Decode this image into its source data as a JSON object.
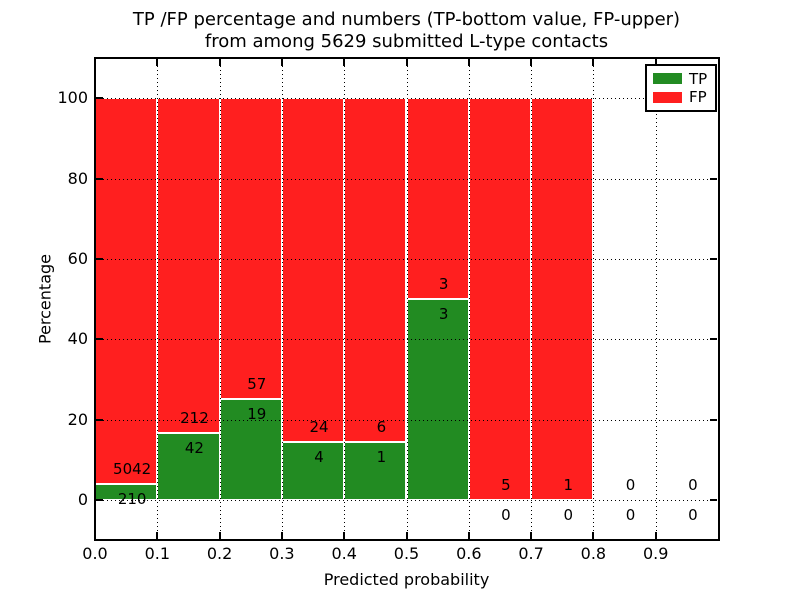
{
  "title": {
    "line1": "TP /FP percentage and numbers (TP-bottom value, FP-upper)",
    "line2": "from among 5629 submitted L-type contacts"
  },
  "chart_data": {
    "type": "bar",
    "stacked": true,
    "normalized": "each bin scaled to 100% of bin total",
    "title": "TP /FP percentage and numbers (TP-bottom value, FP-upper)\nfrom among 5629 submitted L-type contacts",
    "total_contacts": 5629,
    "xlabel": "Predicted probability",
    "ylabel": "Percentage",
    "xlim": [
      0.0,
      1.0
    ],
    "ylim": [
      -10,
      110
    ],
    "x_tick_labels": [
      "0.0",
      "0.1",
      "0.2",
      "0.3",
      "0.4",
      "0.5",
      "0.6",
      "0.7",
      "0.8",
      "0.9"
    ],
    "y_tick_values": [
      0,
      20,
      40,
      60,
      80,
      100
    ],
    "grid": "dotted black, drawn above bars",
    "bar_edge_color": "#ffffff",
    "legend_position": "upper right",
    "bin_edges": [
      0.0,
      0.1,
      0.2,
      0.3,
      0.4,
      0.5,
      0.6,
      0.7,
      0.8,
      0.9,
      1.0
    ],
    "series": [
      {
        "name": "TP",
        "color": "#228b22",
        "counts": [
          210,
          42,
          19,
          4,
          1,
          3,
          0,
          0,
          0,
          0
        ]
      },
      {
        "name": "FP",
        "color": "#ff1f1f",
        "counts": [
          5042,
          212,
          57,
          24,
          6,
          3,
          5,
          1,
          0,
          0
        ]
      }
    ],
    "tp_percent_by_bin": [
      4.0,
      16.5,
      25.0,
      14.3,
      14.3,
      50.0,
      0.0,
      0.0,
      null,
      null
    ]
  }
}
